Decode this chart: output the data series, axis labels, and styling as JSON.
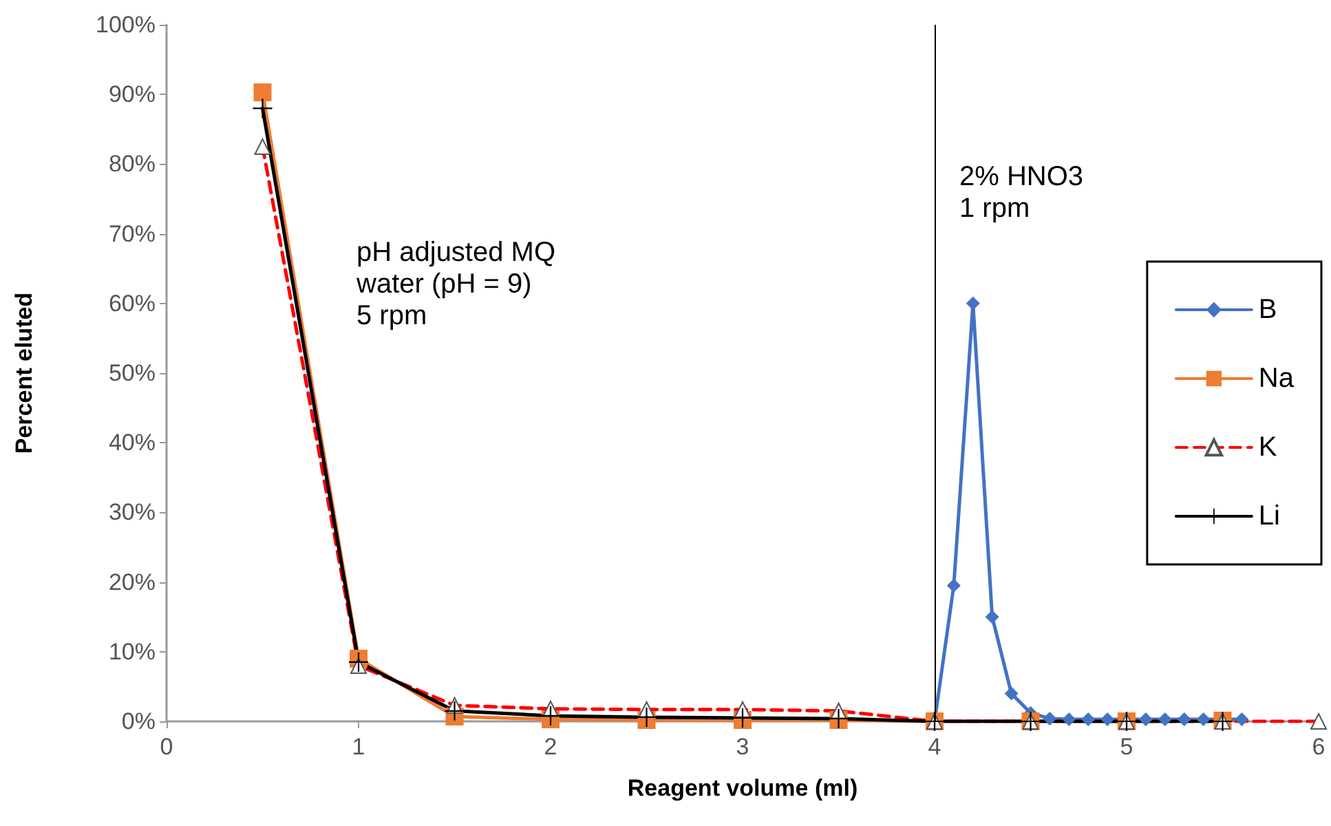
{
  "chart_data": {
    "type": "line",
    "xlabel": "Reagent volume (ml)",
    "ylabel": "Percent eluted",
    "xlim": [
      0,
      6
    ],
    "xticks": [
      0,
      1,
      2,
      3,
      4,
      5,
      6
    ],
    "ylim": [
      0,
      100
    ],
    "yticks": [
      {
        "value": 0,
        "label": "0%"
      },
      {
        "value": 10,
        "label": "10%"
      },
      {
        "value": 20,
        "label": "20%"
      },
      {
        "value": 30,
        "label": "30%"
      },
      {
        "value": 40,
        "label": "40%"
      },
      {
        "value": 50,
        "label": "50%"
      },
      {
        "value": 60,
        "label": "60%"
      },
      {
        "value": 70,
        "label": "70%"
      },
      {
        "value": 80,
        "label": "80%"
      },
      {
        "value": 90,
        "label": "90%"
      },
      {
        "value": 100,
        "label": "100%"
      }
    ],
    "grid": false,
    "legend": "right",
    "ref_lines": [
      {
        "axis": "x",
        "value": 4,
        "color": "#000000",
        "line_style": "solid"
      }
    ],
    "annotations": [
      "pH adjusted MQ\nwater (pH = 9)\n5 rpm",
      "2% HNO3\n1 rpm"
    ],
    "series": [
      {
        "name": "B",
        "color": "#4472c4",
        "marker": "diamond",
        "line_style": "solid",
        "x": [
          4,
          4.1,
          4.2,
          4.3,
          4.4,
          4.5,
          4.6,
          4.7,
          4.8,
          4.9,
          5,
          5.1,
          5.2,
          5.3,
          5.4,
          5.5,
          5.6
        ],
        "values": [
          0,
          19.5,
          60,
          15,
          4,
          1.2,
          0.4,
          0.3,
          0.3,
          0.3,
          0.3,
          0.3,
          0.3,
          0.3,
          0.3,
          0.3,
          0.3
        ]
      },
      {
        "name": "Na",
        "color": "#ed7d31",
        "marker": "square",
        "line_style": "solid",
        "x": [
          0.5,
          1,
          1.5,
          2,
          2.5,
          3,
          3.5,
          4,
          4.5,
          5,
          5.5
        ],
        "values": [
          90.3,
          9,
          0.7,
          0.3,
          0.2,
          0.2,
          0.2,
          0,
          0,
          0,
          0.1
        ]
      },
      {
        "name": "K",
        "color": "#ff0000",
        "marker": "triangle",
        "line_style": "dashed",
        "x": [
          0.5,
          1,
          1.5,
          2,
          2.5,
          3,
          3.5,
          4,
          4.5,
          5,
          5.5,
          6
        ],
        "values": [
          82.5,
          8,
          2.3,
          1.8,
          1.7,
          1.7,
          1.5,
          0,
          0,
          0,
          0,
          0
        ]
      },
      {
        "name": "Li",
        "color": "#000000",
        "marker": "cross",
        "line_style": "solid",
        "x": [
          0.5,
          1,
          1.5,
          2,
          2.5,
          3,
          3.5,
          4,
          4.5,
          5,
          5.5
        ],
        "values": [
          88,
          8.5,
          1.5,
          0.8,
          0.6,
          0.5,
          0.4,
          0,
          0,
          0,
          0
        ]
      }
    ]
  }
}
